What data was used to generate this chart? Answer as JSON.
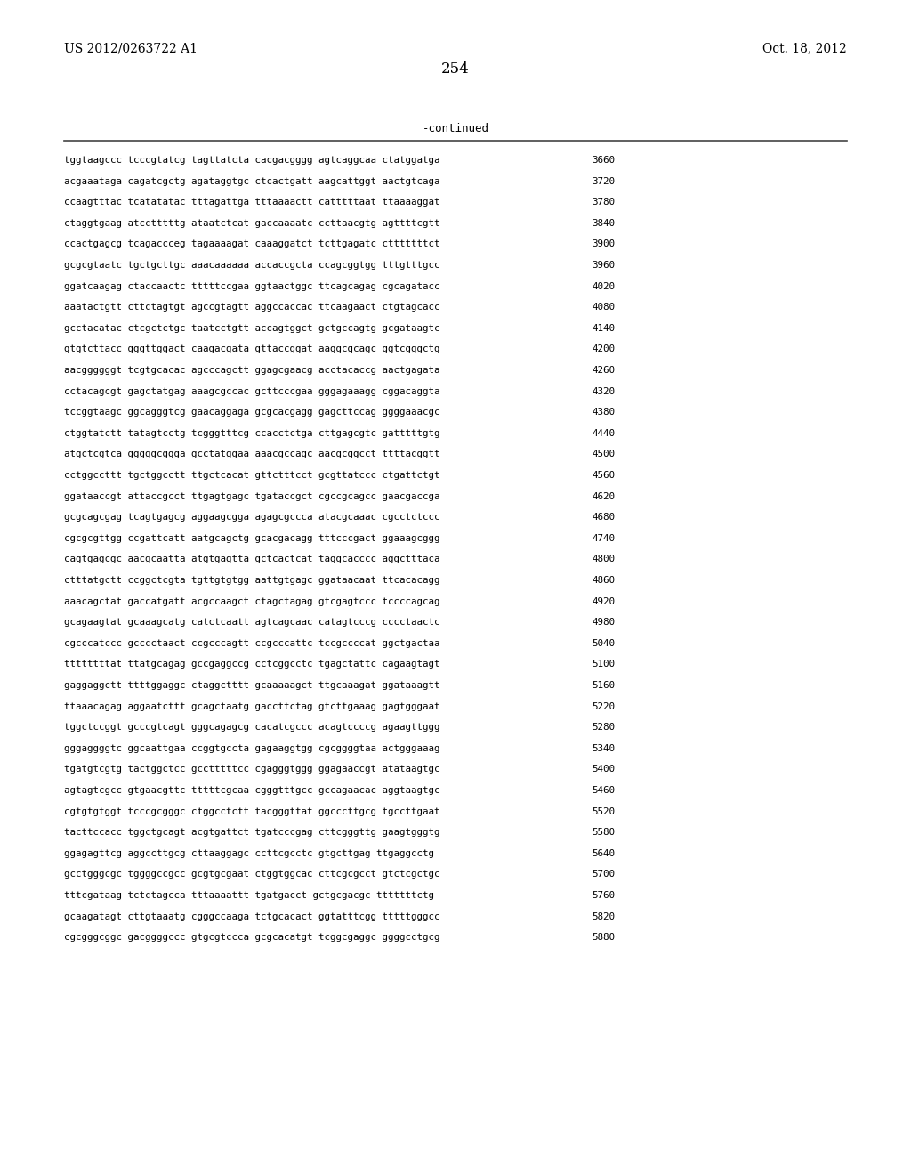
{
  "header_left": "US 2012/0263722 A1",
  "header_right": "Oct. 18, 2012",
  "page_number": "254",
  "continued_label": "-continued",
  "background_color": "#ffffff",
  "text_color": "#000000",
  "sequences": [
    [
      "tggtaagccc tcccgtatcg tagttatcta cacgacgggg agtcaggcaa ctatggatga",
      "3660"
    ],
    [
      "acgaaataga cagatcgctg agataggtgc ctcactgatt aagcattggt aactgtcaga",
      "3720"
    ],
    [
      "ccaagtttac tcatatatac tttagattga tttaaaactt catttttaat ttaaaaggat",
      "3780"
    ],
    [
      "ctaggtgaag atcctttttg ataatctcat gaccaaaatc ccttaacgtg agttttcgtt",
      "3840"
    ],
    [
      "ccactgagcg tcagaccceg tagaaaagat caaaggatct tcttgagatc ctttttttct",
      "3900"
    ],
    [
      "gcgcgtaatc tgctgcttgc aaacaaaaaa accaccgcta ccagcggtgg tttgtttgcc",
      "3960"
    ],
    [
      "ggatcaagag ctaccaactc tttttccgaa ggtaactggc ttcagcagag cgcagatacc",
      "4020"
    ],
    [
      "aaatactgtt cttctagtgt agccgtagtt aggccaccac ttcaagaact ctgtagcacc",
      "4080"
    ],
    [
      "gcctacatac ctcgctctgc taatcctgtt accagtggct gctgccagtg gcgataagtc",
      "4140"
    ],
    [
      "gtgtcttacc gggttggact caagacgata gttaccggat aaggcgcagc ggtcgggctg",
      "4200"
    ],
    [
      "aacggggggt tcgtgcacac agcccagctt ggagcgaacg acctacaccg aactgagata",
      "4260"
    ],
    [
      "cctacagcgt gagctatgag aaagcgccac gcttcccgaa gggagaaagg cggacaggta",
      "4320"
    ],
    [
      "tccggtaagc ggcagggtcg gaacaggaga gcgcacgagg gagcttccag ggggaaacgc",
      "4380"
    ],
    [
      "ctggtatctt tatagtcctg tcgggtttcg ccacctctga cttgagcgtc gatttttgtg",
      "4440"
    ],
    [
      "atgctcgtca gggggcggga gcctatggaa aaacgccagc aacgcggcct ttttacggtt",
      "4500"
    ],
    [
      "cctggccttt tgctggcctt ttgctcacat gttctttcct gcgttatccc ctgattctgt",
      "4560"
    ],
    [
      "ggataaccgt attaccgcct ttgagtgagc tgataccgct cgccgcagcc gaacgaccga",
      "4620"
    ],
    [
      "gcgcagcgag tcagtgagcg aggaagcgga agagcgccca atacgcaaac cgcctctccc",
      "4680"
    ],
    [
      "cgcgcgttgg ccgattcatt aatgcagctg gcacgacagg tttcccgact ggaaagcggg",
      "4740"
    ],
    [
      "cagtgagcgc aacgcaatta atgtgagtta gctcactcat taggcacccc aggctttaca",
      "4800"
    ],
    [
      "ctttatgctt ccggctcgta tgttgtgtgg aattgtgagc ggataacaat ttcacacagg",
      "4860"
    ],
    [
      "aaacagctat gaccatgatt acgccaagct ctagctagag gtcgagtccc tccccagcag",
      "4920"
    ],
    [
      "gcagaagtat gcaaagcatg catctcaatt agtcagcaac catagtcccg cccctaactc",
      "4980"
    ],
    [
      "cgcccatccc gcccctaact ccgcccagtt ccgcccattc tccgccccat ggctgactaa",
      "5040"
    ],
    [
      "ttttttttat ttatgcagag gccgaggccg cctcggcctc tgagctattc cagaagtagt",
      "5100"
    ],
    [
      "gaggaggctt ttttggaggc ctaggctttt gcaaaaagct ttgcaaagat ggataaagtt",
      "5160"
    ],
    [
      "ttaaacagag aggaatcttt gcagctaatg gaccttctag gtcttgaaag gagtgggaat",
      "5220"
    ],
    [
      "tggctccggt gcccgtcagt gggcagagcg cacatcgccc acagtccccg agaagttggg",
      "5280"
    ],
    [
      "gggaggggtc ggcaattgaa ccggtgccta gagaaggtgg cgcggggtaa actgggaaag",
      "5340"
    ],
    [
      "tgatgtcgtg tactggctcc gcctttttcc cgagggtggg ggagaaccgt atataagtgc",
      "5400"
    ],
    [
      "agtagtcgcc gtgaacgttc tttttcgcaa cgggtttgcc gccagaacac aggtaagtgc",
      "5460"
    ],
    [
      "cgtgtgtggt tcccgcgggc ctggcctctt tacgggttat ggcccttgcg tgccttgaat",
      "5520"
    ],
    [
      "tacttccacc tggctgcagt acgtgattct tgatcccgag cttcgggttg gaagtgggtg",
      "5580"
    ],
    [
      "ggagagttcg aggccttgcg cttaaggagc ccttcgcctc gtgcttgag ttgaggcctg",
      "5640"
    ],
    [
      "gcctgggcgc tggggccgcc gcgtgcgaat ctggtggcac cttcgcgcct gtctcgctgc",
      "5700"
    ],
    [
      "tttcgataag tctctagcca tttaaaattt tgatgacct gctgcgacgc tttttttctg",
      "5760"
    ],
    [
      "gcaagatagt cttgtaaatg cgggccaaga tctgcacact ggtatttcgg tttttgggcc",
      "5820"
    ],
    [
      "cgcgggcggc gacggggccc gtgcgtccca gcgcacatgt tcggcgaggc ggggcctgcg",
      "5880"
    ]
  ]
}
